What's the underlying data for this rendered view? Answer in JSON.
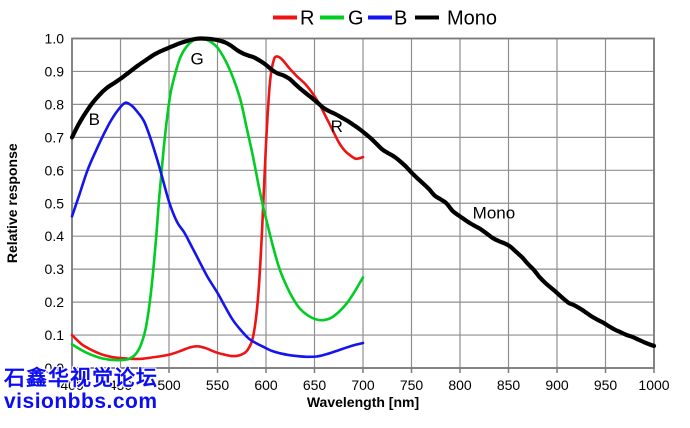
{
  "watermark": {
    "line1": "石鑫华视觉论坛",
    "line2": "visionbbs.com",
    "color": "#0d0df2"
  },
  "colors": {
    "background": "#ffffff",
    "grid": "#8f8f8f",
    "axis": "#7a7a7a",
    "text": "#000000"
  },
  "chart_data": {
    "type": "line",
    "title": "",
    "xlabel": "Wavelength [nm]",
    "ylabel": "Relative response",
    "xlim": [
      400,
      1000
    ],
    "ylim": [
      0.0,
      1.0
    ],
    "grid": true,
    "x_ticks": [
      {
        "value": 400,
        "label": "400"
      },
      {
        "value": 450,
        "label": "450"
      },
      {
        "value": 500,
        "label": "500"
      },
      {
        "value": 550,
        "label": "550"
      },
      {
        "value": 600,
        "label": "600"
      },
      {
        "value": 650,
        "label": "650"
      },
      {
        "value": 700,
        "label": "700"
      },
      {
        "value": 750,
        "label": "750"
      },
      {
        "value": 800,
        "label": "800"
      },
      {
        "value": 850,
        "label": "850"
      },
      {
        "value": 900,
        "label": "900"
      },
      {
        "value": 950,
        "label": "950"
      },
      {
        "value": 1000,
        "label": "1000"
      }
    ],
    "y_ticks": [
      {
        "value": 0.0,
        "label": "0.0"
      },
      {
        "value": 0.1,
        "label": "0.1"
      },
      {
        "value": 0.2,
        "label": "0.2"
      },
      {
        "value": 0.3,
        "label": "0.3"
      },
      {
        "value": 0.4,
        "label": "0.4"
      },
      {
        "value": 0.5,
        "label": "0.5"
      },
      {
        "value": 0.6,
        "label": "0.6"
      },
      {
        "value": 0.7,
        "label": "0.7"
      },
      {
        "value": 0.8,
        "label": "0.8"
      },
      {
        "value": 0.9,
        "label": "0.9"
      },
      {
        "value": 1.0,
        "label": "1.0"
      }
    ],
    "legend": {
      "position": "top",
      "entries": [
        {
          "label": "R",
          "color": "#ee1414"
        },
        {
          "label": "G",
          "color": "#00cc22"
        },
        {
          "label": "B",
          "color": "#1414ee"
        },
        {
          "label": "Mono",
          "color": "#000000"
        }
      ]
    },
    "curve_labels": [
      {
        "text": "B",
        "x": 423,
        "y": 0.755,
        "anchor": "middle"
      },
      {
        "text": "G",
        "x": 529,
        "y": 0.94,
        "anchor": "middle"
      },
      {
        "text": "R",
        "x": 673,
        "y": 0.735,
        "anchor": "middle"
      },
      {
        "text": "Mono",
        "x": 835,
        "y": 0.472,
        "anchor": "middle"
      }
    ],
    "series": [
      {
        "name": "R",
        "color": "#ee1414",
        "points": [
          [
            400,
            0.1
          ],
          [
            410,
            0.072
          ],
          [
            420,
            0.055
          ],
          [
            430,
            0.042
          ],
          [
            440,
            0.034
          ],
          [
            450,
            0.03
          ],
          [
            460,
            0.028
          ],
          [
            472,
            0.028
          ],
          [
            482,
            0.032
          ],
          [
            492,
            0.036
          ],
          [
            502,
            0.042
          ],
          [
            512,
            0.052
          ],
          [
            521,
            0.062
          ],
          [
            529,
            0.066
          ],
          [
            538,
            0.06
          ],
          [
            548,
            0.048
          ],
          [
            558,
            0.04
          ],
          [
            566,
            0.036
          ],
          [
            574,
            0.04
          ],
          [
            581,
            0.055
          ],
          [
            587,
            0.1
          ],
          [
            592,
            0.22
          ],
          [
            596,
            0.42
          ],
          [
            600,
            0.68
          ],
          [
            604,
            0.865
          ],
          [
            608,
            0.935
          ],
          [
            612,
            0.945
          ],
          [
            617,
            0.935
          ],
          [
            624,
            0.91
          ],
          [
            632,
            0.885
          ],
          [
            641,
            0.86
          ],
          [
            650,
            0.825
          ],
          [
            657,
            0.79
          ],
          [
            663,
            0.755
          ],
          [
            669,
            0.72
          ],
          [
            675,
            0.685
          ],
          [
            681,
            0.66
          ],
          [
            687,
            0.645
          ],
          [
            693,
            0.635
          ],
          [
            700,
            0.64
          ]
        ]
      },
      {
        "name": "G",
        "color": "#00cc22",
        "points": [
          [
            400,
            0.072
          ],
          [
            410,
            0.054
          ],
          [
            420,
            0.04
          ],
          [
            430,
            0.03
          ],
          [
            440,
            0.025
          ],
          [
            450,
            0.024
          ],
          [
            458,
            0.027
          ],
          [
            465,
            0.04
          ],
          [
            471,
            0.07
          ],
          [
            476,
            0.12
          ],
          [
            481,
            0.22
          ],
          [
            486,
            0.37
          ],
          [
            490,
            0.52
          ],
          [
            494,
            0.65
          ],
          [
            498,
            0.76
          ],
          [
            502,
            0.84
          ],
          [
            507,
            0.9
          ],
          [
            512,
            0.945
          ],
          [
            518,
            0.975
          ],
          [
            524,
            0.992
          ],
          [
            530,
            1.0
          ],
          [
            537,
            0.998
          ],
          [
            544,
            0.988
          ],
          [
            550,
            0.972
          ],
          [
            556,
            0.945
          ],
          [
            562,
            0.91
          ],
          [
            568,
            0.865
          ],
          [
            574,
            0.81
          ],
          [
            580,
            0.73
          ],
          [
            586,
            0.65
          ],
          [
            592,
            0.56
          ],
          [
            597,
            0.49
          ],
          [
            602,
            0.43
          ],
          [
            608,
            0.36
          ],
          [
            614,
            0.3
          ],
          [
            621,
            0.25
          ],
          [
            628,
            0.21
          ],
          [
            635,
            0.18
          ],
          [
            643,
            0.16
          ],
          [
            651,
            0.148
          ],
          [
            659,
            0.145
          ],
          [
            667,
            0.152
          ],
          [
            675,
            0.17
          ],
          [
            683,
            0.195
          ],
          [
            691,
            0.23
          ],
          [
            700,
            0.275
          ]
        ]
      },
      {
        "name": "B",
        "color": "#1414ee",
        "points": [
          [
            400,
            0.46
          ],
          [
            408,
            0.53
          ],
          [
            416,
            0.6
          ],
          [
            424,
            0.655
          ],
          [
            432,
            0.705
          ],
          [
            440,
            0.75
          ],
          [
            448,
            0.785
          ],
          [
            455,
            0.805
          ],
          [
            462,
            0.795
          ],
          [
            468,
            0.775
          ],
          [
            474,
            0.75
          ],
          [
            480,
            0.705
          ],
          [
            486,
            0.65
          ],
          [
            492,
            0.59
          ],
          [
            500,
            0.505
          ],
          [
            508,
            0.445
          ],
          [
            516,
            0.41
          ],
          [
            524,
            0.365
          ],
          [
            532,
            0.32
          ],
          [
            540,
            0.275
          ],
          [
            550,
            0.228
          ],
          [
            558,
            0.185
          ],
          [
            566,
            0.145
          ],
          [
            574,
            0.115
          ],
          [
            582,
            0.09
          ],
          [
            590,
            0.075
          ],
          [
            598,
            0.063
          ],
          [
            606,
            0.052
          ],
          [
            614,
            0.045
          ],
          [
            622,
            0.04
          ],
          [
            632,
            0.036
          ],
          [
            642,
            0.034
          ],
          [
            652,
            0.035
          ],
          [
            660,
            0.04
          ],
          [
            668,
            0.047
          ],
          [
            676,
            0.055
          ],
          [
            684,
            0.063
          ],
          [
            692,
            0.07
          ],
          [
            700,
            0.076
          ]
        ]
      },
      {
        "name": "Mono",
        "color": "#000000",
        "points": [
          [
            400,
            0.7
          ],
          [
            406,
            0.735
          ],
          [
            412,
            0.765
          ],
          [
            420,
            0.8
          ],
          [
            428,
            0.828
          ],
          [
            436,
            0.85
          ],
          [
            444,
            0.866
          ],
          [
            452,
            0.882
          ],
          [
            460,
            0.9
          ],
          [
            468,
            0.918
          ],
          [
            476,
            0.934
          ],
          [
            484,
            0.95
          ],
          [
            492,
            0.962
          ],
          [
            500,
            0.972
          ],
          [
            508,
            0.982
          ],
          [
            516,
            0.99
          ],
          [
            524,
            0.997
          ],
          [
            532,
            1.0
          ],
          [
            541,
            0.999
          ],
          [
            550,
            0.995
          ],
          [
            558,
            0.988
          ],
          [
            564,
            0.978
          ],
          [
            570,
            0.965
          ],
          [
            576,
            0.955
          ],
          [
            582,
            0.948
          ],
          [
            588,
            0.942
          ],
          [
            594,
            0.932
          ],
          [
            600,
            0.92
          ],
          [
            606,
            0.905
          ],
          [
            612,
            0.894
          ],
          [
            618,
            0.888
          ],
          [
            624,
            0.878
          ],
          [
            630,
            0.862
          ],
          [
            636,
            0.846
          ],
          [
            642,
            0.832
          ],
          [
            648,
            0.818
          ],
          [
            654,
            0.803
          ],
          [
            660,
            0.788
          ],
          [
            666,
            0.778
          ],
          [
            672,
            0.77
          ],
          [
            678,
            0.76
          ],
          [
            684,
            0.75
          ],
          [
            690,
            0.738
          ],
          [
            696,
            0.726
          ],
          [
            702,
            0.712
          ],
          [
            708,
            0.697
          ],
          [
            714,
            0.68
          ],
          [
            720,
            0.663
          ],
          [
            726,
            0.652
          ],
          [
            732,
            0.642
          ],
          [
            738,
            0.628
          ],
          [
            744,
            0.612
          ],
          [
            750,
            0.593
          ],
          [
            756,
            0.576
          ],
          [
            762,
            0.56
          ],
          [
            768,
            0.543
          ],
          [
            774,
            0.523
          ],
          [
            780,
            0.512
          ],
          [
            786,
            0.5
          ],
          [
            792,
            0.478
          ],
          [
            798,
            0.464
          ],
          [
            804,
            0.452
          ],
          [
            810,
            0.44
          ],
          [
            816,
            0.43
          ],
          [
            822,
            0.42
          ],
          [
            828,
            0.407
          ],
          [
            834,
            0.394
          ],
          [
            840,
            0.385
          ],
          [
            846,
            0.378
          ],
          [
            852,
            0.368
          ],
          [
            858,
            0.352
          ],
          [
            864,
            0.336
          ],
          [
            870,
            0.316
          ],
          [
            876,
            0.298
          ],
          [
            882,
            0.276
          ],
          [
            888,
            0.258
          ],
          [
            894,
            0.243
          ],
          [
            900,
            0.228
          ],
          [
            906,
            0.212
          ],
          [
            912,
            0.198
          ],
          [
            918,
            0.19
          ],
          [
            924,
            0.18
          ],
          [
            930,
            0.168
          ],
          [
            936,
            0.156
          ],
          [
            942,
            0.146
          ],
          [
            948,
            0.137
          ],
          [
            954,
            0.126
          ],
          [
            960,
            0.116
          ],
          [
            966,
            0.108
          ],
          [
            972,
            0.1
          ],
          [
            978,
            0.094
          ],
          [
            984,
            0.086
          ],
          [
            990,
            0.078
          ],
          [
            996,
            0.071
          ],
          [
            1000,
            0.067
          ]
        ]
      }
    ]
  }
}
